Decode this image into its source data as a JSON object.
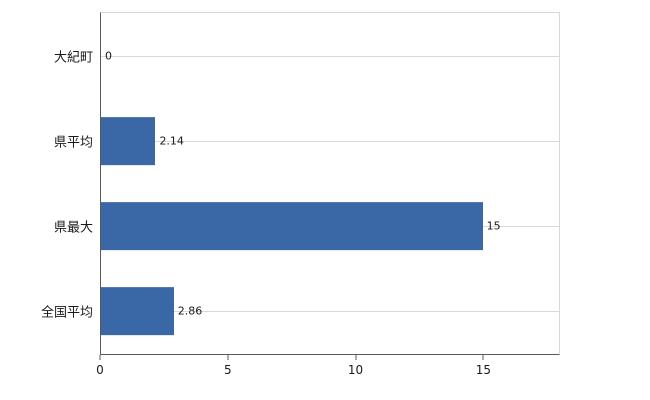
{
  "chart_data": {
    "type": "bar",
    "orientation": "horizontal",
    "title": "",
    "xlabel": "",
    "ylabel": "",
    "categories": [
      "大紀町",
      "県平均",
      "県最大",
      "全国平均"
    ],
    "values": [
      0,
      2.14,
      15,
      2.86
    ],
    "value_labels": [
      "0",
      "2.14",
      "15",
      "2.86"
    ],
    "xlim": [
      0,
      18
    ],
    "xticks": [
      0,
      5,
      10,
      15
    ],
    "xtick_labels": [
      "0",
      "5",
      "10",
      "15"
    ],
    "bar_color": "#3a67a5",
    "grid": "horizontal",
    "gridline_color": "#d9d9d9",
    "axis_color": "#595959",
    "legend": "none",
    "background_color": "#ffffff"
  }
}
